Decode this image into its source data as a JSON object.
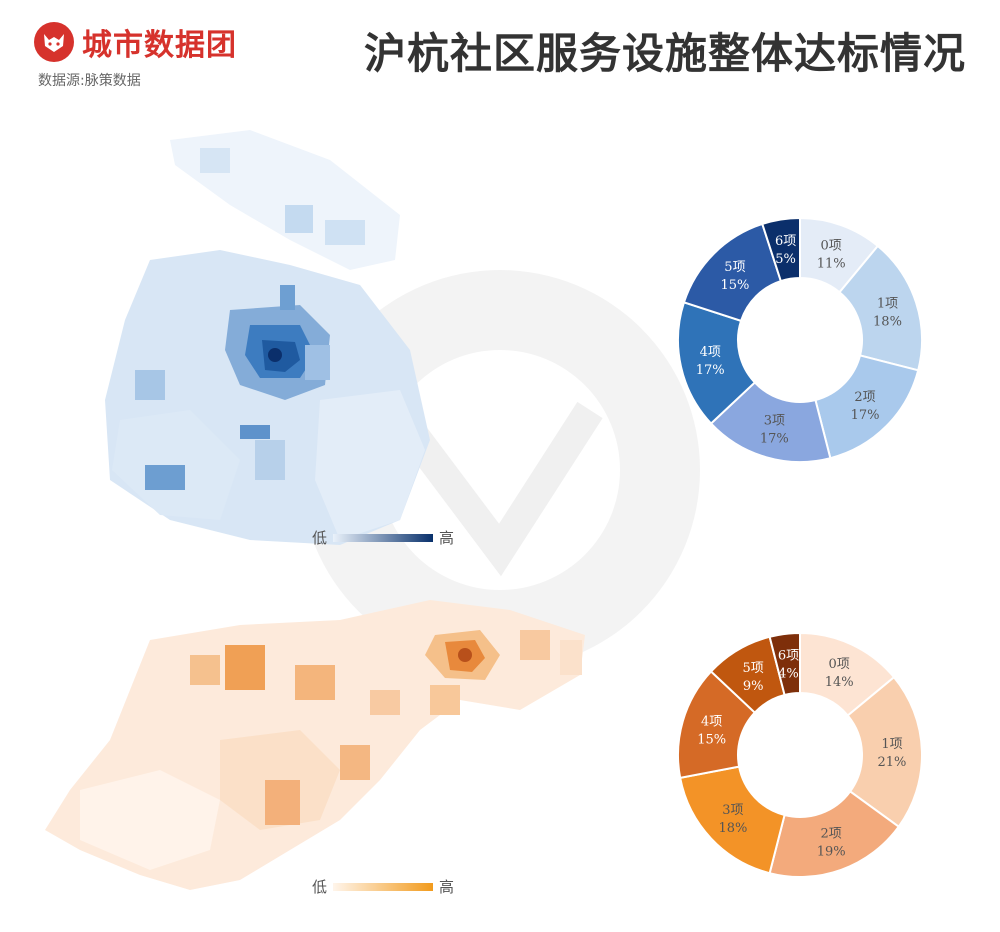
{
  "header": {
    "logo_text": "城市数据团",
    "source": "数据源:脉策数据",
    "title": "沪杭社区服务设施整体达标情况"
  },
  "maps": {
    "shanghai": {
      "legend_low": "低",
      "legend_high": "高",
      "color_low": "#eaf2fb",
      "color_high": "#08306b"
    },
    "hangzhou": {
      "legend_low": "低",
      "legend_high": "高",
      "color_low": "#fff5eb",
      "color_high": "#f29b1d"
    }
  },
  "chart_data": [
    {
      "type": "pie",
      "donut": true,
      "categories": [
        "0项",
        "1项",
        "2项",
        "3项",
        "4项",
        "5项",
        "6项"
      ],
      "labels": [
        "11%",
        "18%",
        "17%",
        "17%",
        "17%",
        "15%",
        "5%"
      ],
      "values": [
        11,
        18,
        17,
        17,
        17,
        15,
        5
      ],
      "colors": [
        "#e4ecf7",
        "#bcd5ee",
        "#a9c9ec",
        "#8aa7df",
        "#2f73b8",
        "#2c5aa6",
        "#0b2f6b"
      ],
      "text_colors": [
        "#555555",
        "#555555",
        "#555555",
        "#555555",
        "#ffffff",
        "#ffffff",
        "#ffffff"
      ]
    },
    {
      "type": "pie",
      "donut": true,
      "categories": [
        "0项",
        "1项",
        "2项",
        "3项",
        "4项",
        "5项",
        "6项"
      ],
      "labels": [
        "14%",
        "21%",
        "19%",
        "18%",
        "15%",
        "9%",
        "4%"
      ],
      "values": [
        14,
        21,
        19,
        18,
        15,
        9,
        4
      ],
      "colors": [
        "#fde4d3",
        "#f9cfae",
        "#f3aa7c",
        "#f39327",
        "#d56a26",
        "#c0570f",
        "#7e2f0a"
      ],
      "text_colors": [
        "#555555",
        "#555555",
        "#555555",
        "#555555",
        "#ffffff",
        "#ffffff",
        "#ffffff"
      ]
    }
  ]
}
